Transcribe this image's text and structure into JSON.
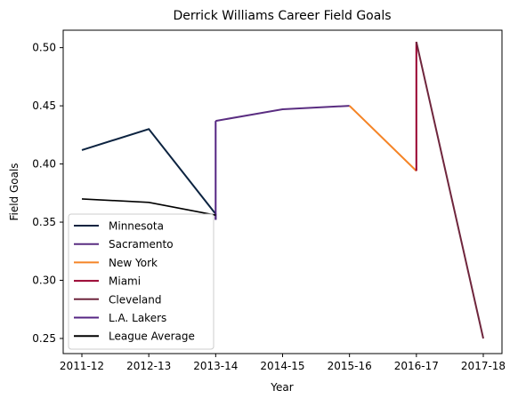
{
  "chart_data": {
    "type": "line",
    "title": "Derrick Williams  Career Field Goals",
    "xlabel": "Year",
    "ylabel": "Field Goals",
    "categories": [
      "2011-12",
      "2012-13",
      "2013-14",
      "2014-15",
      "2015-16",
      "2016-17",
      "2017-18"
    ],
    "ylim": [
      0.237,
      0.515
    ],
    "yticks": [
      "0.25",
      "0.30",
      "0.35",
      "0.40",
      "0.45",
      "0.50"
    ],
    "ytick_values": [
      0.25,
      0.3,
      0.35,
      0.4,
      0.45,
      0.5
    ],
    "legend_position": "lower-left",
    "grid": false,
    "series": [
      {
        "name": "Minnesota",
        "color": "#0c2340",
        "points": [
          [
            0,
            0.412
          ],
          [
            1,
            0.43
          ],
          [
            2,
            0.357
          ],
          [
            2,
            0.352
          ]
        ]
      },
      {
        "name": "Sacramento",
        "color": "#5a2d81",
        "points": [
          [
            2,
            0.437
          ],
          [
            3,
            0.447
          ],
          [
            4,
            0.45
          ]
        ]
      },
      {
        "name": "New York",
        "color": "#f58426",
        "points": [
          [
            4,
            0.45
          ],
          [
            5,
            0.394
          ]
        ]
      },
      {
        "name": "Miami",
        "color": "#98002e",
        "points": [
          [
            5,
            0.394
          ],
          [
            5,
            0.505
          ]
        ]
      },
      {
        "name": "Cleveland",
        "color": "#6f263d",
        "points": [
          [
            5,
            0.505
          ],
          [
            6,
            0.25
          ]
        ]
      },
      {
        "name": "L.A. Lakers",
        "color": "#552583",
        "points": [
          [
            2,
            0.352
          ],
          [
            2,
            0.437
          ]
        ]
      },
      {
        "name": "League Average",
        "color": "#000000",
        "points": [
          [
            0,
            0.37
          ],
          [
            1,
            0.367
          ],
          [
            2,
            0.356
          ]
        ]
      }
    ]
  }
}
